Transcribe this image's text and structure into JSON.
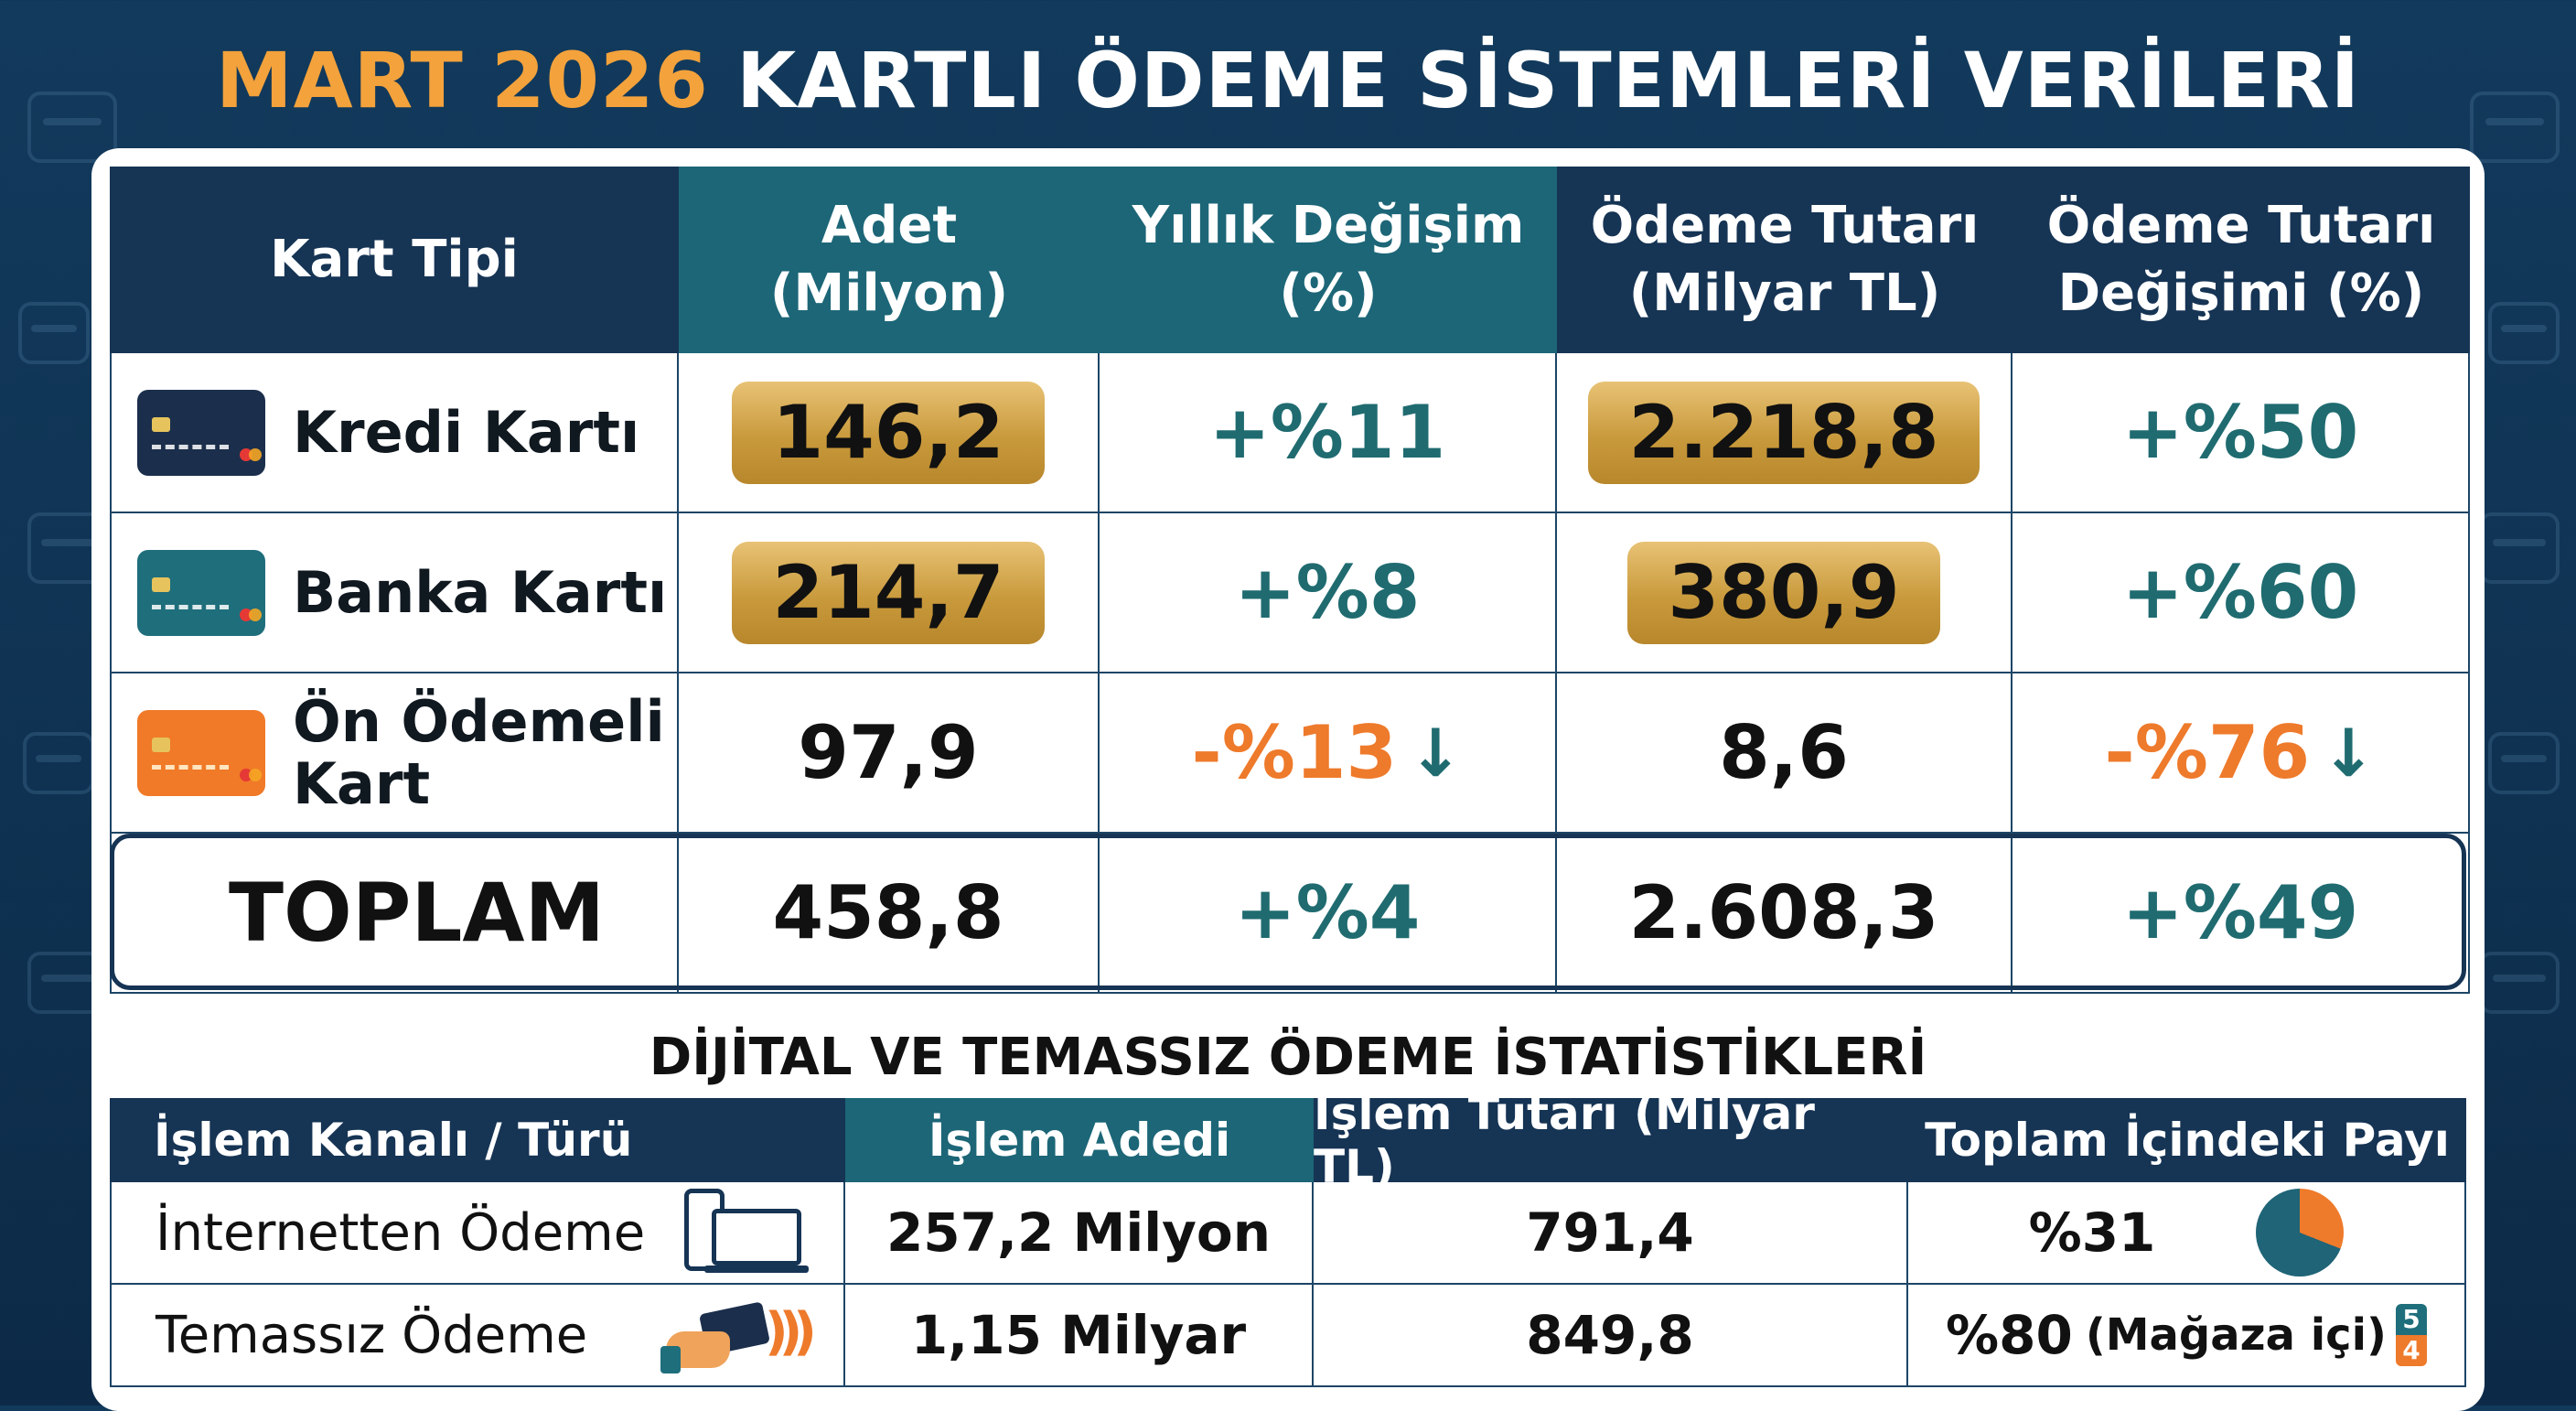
{
  "title": {
    "accent": "MART 2026",
    "rest": " KARTLI ÖDEME SİSTEMLERİ VERİLERİ"
  },
  "colors": {
    "navy": "#163454",
    "teal": "#1c6677",
    "gold": "#c99a3c",
    "positive": "#1f6b70",
    "negative": "#ee7a2b"
  },
  "card_table": {
    "headers": {
      "kart_tipi": "Kart Tipi",
      "adet_1": "Adet",
      "adet_2": "(Milyon)",
      "yillik_1": "Yıllık Değişim",
      "yillik_2": "(%)",
      "tutar_1": "Ödeme Tutarı",
      "tutar_2": "(Milyar TL)",
      "tutar_degisim_1": "Ödeme Tutarı",
      "tutar_degisim_2": "Değişimi (%)"
    },
    "rows": [
      {
        "icon": "credit-card-navy-icon",
        "label": "Kredi Kartı",
        "adet": "146,2",
        "yillik": "+%11",
        "tutar": "2.218,8",
        "tutar_degisim": "+%50"
      },
      {
        "icon": "debit-card-teal-icon",
        "label": "Banka Kartı",
        "adet": "214,7",
        "yillik": "+%8",
        "tutar": "380,9",
        "tutar_degisim": "+%60"
      },
      {
        "icon": "prepaid-card-orange-icon",
        "label_1": "Ön Ödemeli",
        "label_2": "Kart",
        "adet": "97,9",
        "yillik": "-%13",
        "tutar": "8,6",
        "tutar_degisim": "-%76"
      }
    ],
    "total": {
      "label": "TOPLAM",
      "adet": "458,8",
      "yillik": "+%4",
      "tutar": "2.608,3",
      "tutar_degisim": "+%49"
    },
    "down_arrow": "↓"
  },
  "digital": {
    "title": "DİJİTAL VE TEMASSIZ ÖDEME İSTATİSTİKLERİ",
    "headers": {
      "kanal": "İşlem Kanalı / Türü",
      "adet": "İşlem Adedi",
      "tutar": "İşlem Tutarı (Milyar TL)",
      "pay": "Toplam İçindeki Payı"
    },
    "rows": [
      {
        "label": "İnternetten Ödeme",
        "icon": "phone-laptop-icon",
        "adet": "257,2 Milyon",
        "tutar": "791,4",
        "pay": "%31",
        "pay_value": 31
      },
      {
        "label": "Temassız Ödeme",
        "icon": "contactless-payment-icon",
        "adet": "1,15 Milyar",
        "tutar": "849,8",
        "pay": "%80",
        "pay_note": "(Mağaza içi)",
        "badge_top": "5",
        "badge_bottom": "4"
      }
    ]
  }
}
